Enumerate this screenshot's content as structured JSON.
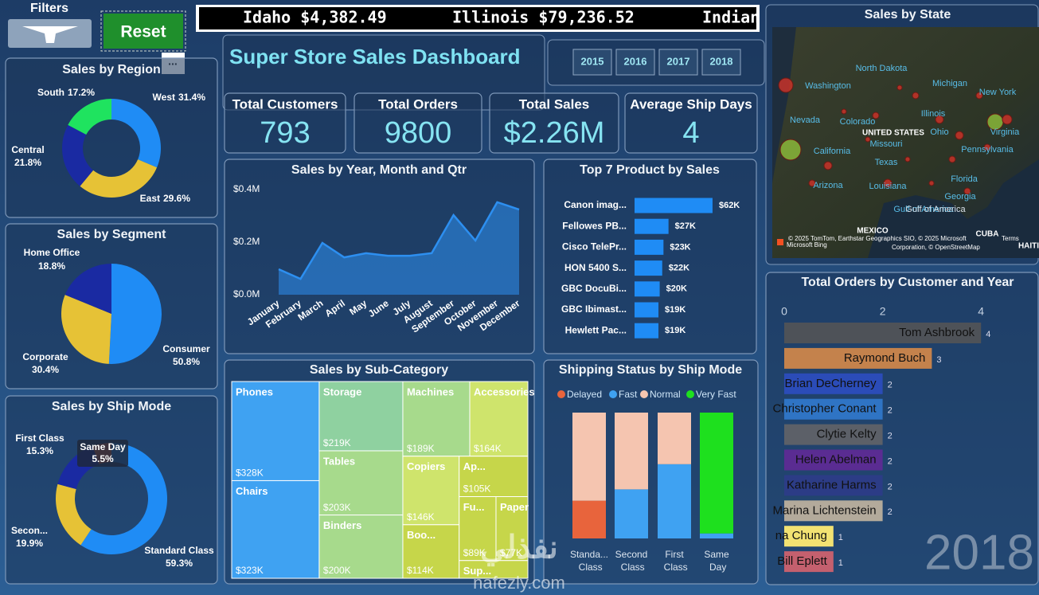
{
  "header": {
    "filters_label": "Filters",
    "reset_button": "Reset",
    "more_options": "...",
    "ticker": [
      "Idaho $4,382.49",
      "Illinois $79,236.52",
      "Indian"
    ],
    "title": "Super Store Sales Dashboard",
    "years": [
      "2015",
      "2016",
      "2017",
      "2018"
    ]
  },
  "kpis": [
    {
      "label": "Total Customers",
      "value": "793"
    },
    {
      "label": "Total Orders",
      "value": "9800"
    },
    {
      "label": "Total Sales",
      "value": "$2.26M"
    },
    {
      "label": "Average Ship Days",
      "value": "4"
    }
  ],
  "map": {
    "title": "Sales by State",
    "labels": [
      "North Dakota",
      "Washington",
      "Michigan",
      "New York",
      "Nevada",
      "Colorado",
      "UNITED STATES",
      "Illinois",
      "Ohio",
      "Missouri",
      "Pennsylvania",
      "California",
      "Virginia",
      "Texas",
      "Florida",
      "Arizona",
      "Louisiana",
      "Georgia",
      "Gulf of America",
      "MEXICO",
      "CUBA",
      "HAITI"
    ],
    "attribution": [
      "© 2025 TomTom, Earthstar Geographics SIO, © 2025 Microsoft",
      "Corporation, © OpenStreetMap"
    ],
    "terms": "Terms",
    "brand": "Microsoft Bing"
  },
  "chart_data": [
    {
      "type": "donut",
      "title": "Sales by Region",
      "categories": [
        "West",
        "East",
        "Central",
        "South"
      ],
      "values": [
        31.4,
        29.6,
        21.8,
        17.2
      ],
      "value_labels": [
        "31.4%",
        "29.6%",
        "21.8%",
        "17.2%"
      ],
      "colors": [
        "#1f8cf5",
        "#e6c236",
        "#1a2aa2",
        "#1fe35f"
      ]
    },
    {
      "type": "pie",
      "title": "Sales by Segment",
      "categories": [
        "Consumer",
        "Corporate",
        "Home Office"
      ],
      "values": [
        50.8,
        30.4,
        18.8
      ],
      "value_labels": [
        "50.8%",
        "30.4%",
        "18.8%"
      ],
      "colors": [
        "#1f8cf5",
        "#e6c236",
        "#1a2aa2"
      ]
    },
    {
      "type": "donut",
      "title": "Sales by Ship Mode",
      "categories": [
        "Standard Class",
        "Secon...",
        "First Class",
        "Same Day"
      ],
      "values": [
        59.3,
        19.9,
        15.3,
        5.5
      ],
      "value_labels": [
        "59.3%",
        "19.9%",
        "15.3%",
        "5.5%"
      ],
      "colors": [
        "#1f8cf5",
        "#e6c236",
        "#1a2aa2",
        "#e2643a"
      ]
    },
    {
      "type": "area",
      "title": "Sales by Year, Month and Qtr",
      "categories": [
        "January",
        "February",
        "March",
        "April",
        "May",
        "June",
        "July",
        "August",
        "September",
        "October",
        "November",
        "December"
      ],
      "values": [
        97000,
        60000,
        197000,
        142000,
        158000,
        148000,
        148000,
        158000,
        303000,
        206000,
        352000,
        324000
      ],
      "color": "#2d8ff0",
      "ylim": [
        0,
        400000
      ],
      "yticks": [
        {
          "value": 0,
          "label": "$0.0M"
        },
        {
          "value": 200000,
          "label": "$0.2M"
        },
        {
          "value": 400000,
          "label": "$0.4M"
        }
      ]
    },
    {
      "type": "hbar",
      "title": "Top 7 Product by Sales",
      "categories": [
        "Canon imag...",
        "Fellowes PB...",
        "Cisco TelePr...",
        "HON 5400 S...",
        "GBC DocuBi...",
        "GBC Ibimast...",
        "Hewlett Pac..."
      ],
      "values": [
        62,
        27,
        23,
        22,
        20,
        19,
        19
      ],
      "value_labels": [
        "$62K",
        "$27K",
        "$23K",
        "$22K",
        "$20K",
        "$19K",
        "$19K"
      ],
      "color": "#1f8cf5"
    },
    {
      "type": "treemap",
      "title": "Sales by Sub-Category",
      "categories": [
        "Phones",
        "Chairs",
        "Storage",
        "Tables",
        "Binders",
        "Machines",
        "Accessories",
        "Copiers",
        "Boo...",
        "Ap...",
        "Fu...",
        "Paper",
        "Sup..."
      ],
      "values": [
        328,
        323,
        219,
        203,
        200,
        189,
        164,
        146,
        114,
        105,
        89,
        77,
        46
      ],
      "value_labels": [
        "$328K",
        "$323K",
        "$219K",
        "$203K",
        "$200K",
        "$189K",
        "$164K",
        "$146K",
        "$114K",
        "$105K",
        "$89K",
        "$77K",
        null
      ],
      "colors": [
        "#3fa2f2",
        "#3fa2f2",
        "#8fd1a0",
        "#a7da8c",
        "#a7da8c",
        "#a7da8c",
        "#cfe46c",
        "#cfe46c",
        "#c6d64a",
        "#c6d64a",
        "#c6d64a",
        "#c6d64a",
        "#c6d64a"
      ]
    },
    {
      "type": "stacked_bar",
      "title": "Shipping Status by Ship Mode",
      "categories": [
        "Standa... Class",
        "Second Class",
        "First Class",
        "Same Day"
      ],
      "series": [
        {
          "name": "Delayed",
          "color": "#e8643c",
          "values": [
            30,
            0,
            0,
            0
          ]
        },
        {
          "name": "Fast",
          "color": "#3fa2f2",
          "values": [
            0,
            39,
            59,
            4
          ]
        },
        {
          "name": "Normal",
          "color": "#f5c5b0",
          "values": [
            70,
            61,
            41,
            0
          ]
        },
        {
          "name": "Very Fast",
          "color": "#1ee01e",
          "values": [
            0,
            0,
            0,
            96
          ]
        }
      ]
    },
    {
      "type": "hbar",
      "title": "Total Orders by Customer and Year",
      "categories": [
        "Tom Ashbrook",
        "Raymond Buch",
        "Brian DeCherney",
        "Christopher Conant",
        "Clytie Kelty",
        "Helen Abelman",
        "Katharine Harms",
        "Marina Lichtenstein",
        "na Chung",
        "Bill Eplett"
      ],
      "values": [
        4,
        3,
        2,
        2,
        2,
        2,
        2,
        2,
        1,
        1
      ],
      "colors": [
        "#4e5258",
        "#c4824c",
        "#2b4cb8",
        "#2f74c4",
        "#5c6068",
        "#5a2c92",
        "#2c3c86",
        "#b3aa9b",
        "#f2e272",
        "#c4606e"
      ],
      "xlim": [
        0,
        5
      ],
      "xticks": [
        0,
        2,
        4
      ],
      "year": "2018"
    }
  ],
  "watermark": {
    "logo": "نفذلي",
    "site": "nafezly.com"
  }
}
